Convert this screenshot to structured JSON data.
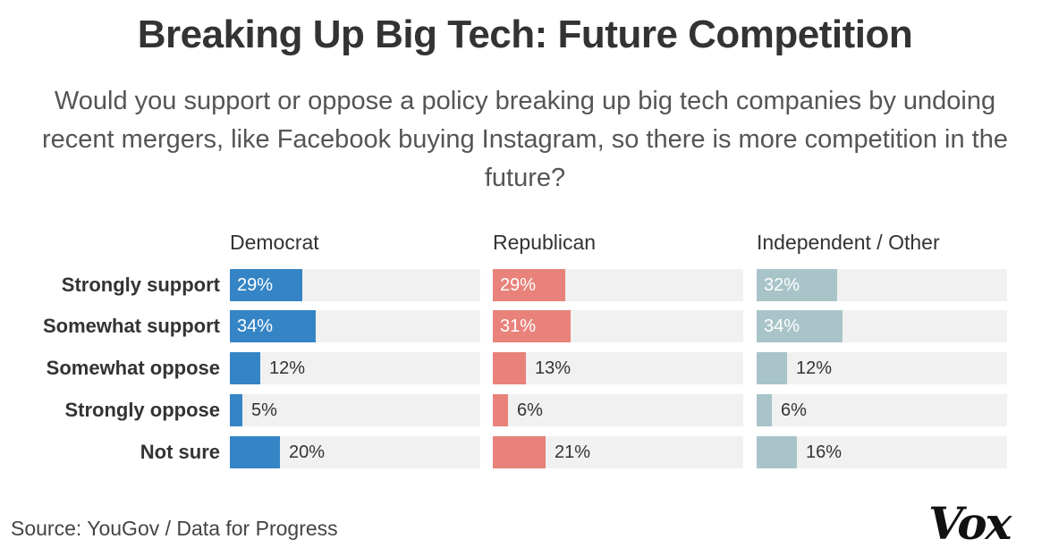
{
  "chart_data": {
    "type": "bar",
    "title": "Breaking Up Big Tech: Future Competition",
    "subtitle": "Would you support or oppose a policy breaking up big tech companies by undoing recent mergers, like Facebook buying Instagram, so there is more competition in the future?",
    "categories": [
      "Strongly support",
      "Somewhat support",
      "Somewhat oppose",
      "Strongly oppose",
      "Not sure"
    ],
    "series": [
      {
        "name": "Democrat",
        "values": [
          29,
          34,
          12,
          5,
          20
        ],
        "labels": [
          "29%",
          "34%",
          "12%",
          "5%",
          "20%"
        ],
        "color": "#3585c6"
      },
      {
        "name": "Republican",
        "values": [
          29,
          31,
          13,
          6,
          21
        ],
        "labels": [
          "29%",
          "31%",
          "13%",
          "6%",
          "21%"
        ],
        "color": "#e8827a"
      },
      {
        "name": "Independent / Other",
        "values": [
          32,
          34,
          12,
          6,
          16
        ],
        "labels": [
          "32%",
          "34%",
          "12%",
          "6%",
          "16%"
        ],
        "color": "#a8c4c8"
      }
    ],
    "xlim": [
      0,
      100
    ],
    "grid": false,
    "source": "Source: YouGov / Data for Progress"
  },
  "logo": "Vox"
}
